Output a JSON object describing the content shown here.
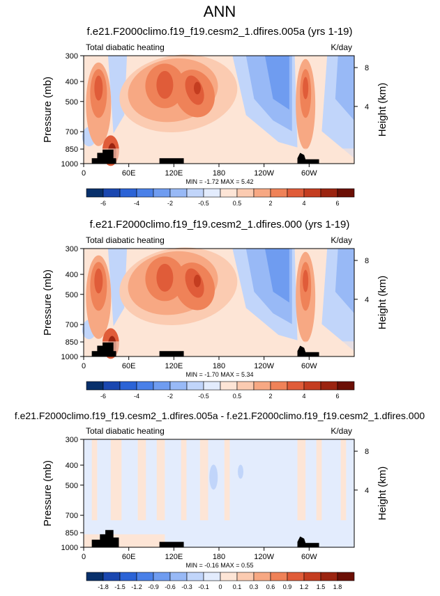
{
  "main_title": "ANN",
  "chart_data": [
    {
      "type": "heatmap",
      "title": "f.e21.F2000climo.f19_f19.cesm2_1.dfires.005a (yrs 1-19)",
      "left_label": "Total diabatic heating",
      "units": "K/day",
      "xlabel": "",
      "ylabel": "Pressure (mb)",
      "y2label": "Height (km)",
      "x_ticks": [
        "0",
        "60E",
        "120E",
        "180",
        "120W",
        "60W"
      ],
      "y_ticks": [
        "300",
        "400",
        "500",
        "700",
        "850",
        "1000"
      ],
      "y2_ticks": [
        "8",
        "4"
      ],
      "stats": "MIN = -1.72   MAX =   5.42",
      "min": -1.72,
      "max": 5.42,
      "colorbar_labels": [
        "-6",
        "-4",
        "-2",
        "-0.5",
        "0.5",
        "2",
        "4",
        "6"
      ],
      "colorbar_levels": 16
    },
    {
      "type": "heatmap",
      "title": "f.e21.F2000climo.f19_f19.cesm2_1.dfires.000 (yrs 1-19)",
      "left_label": "Total diabatic heating",
      "units": "K/day",
      "xlabel": "",
      "ylabel": "Pressure (mb)",
      "y2label": "Height (km)",
      "x_ticks": [
        "0",
        "60E",
        "120E",
        "180",
        "120W",
        "60W"
      ],
      "y_ticks": [
        "300",
        "400",
        "500",
        "700",
        "850",
        "1000"
      ],
      "y2_ticks": [
        "8",
        "4"
      ],
      "stats": "MIN = -1.70   MAX =   5.34",
      "min": -1.7,
      "max": 5.34,
      "colorbar_labels": [
        "-6",
        "-4",
        "-2",
        "-0.5",
        "0.5",
        "2",
        "4",
        "6"
      ],
      "colorbar_levels": 16
    },
    {
      "type": "heatmap",
      "title": "f.e21.F2000climo.f19_f19.cesm2_1.dfires.005a - f.e21.F2000climo.f19_f19.cesm2_1.dfires.000",
      "left_label": "Total diabatic heating",
      "units": "K/day",
      "xlabel": "",
      "ylabel": "Pressure (mb)",
      "y2label": "Height (km)",
      "x_ticks": [
        "0",
        "60E",
        "120E",
        "180",
        "120W",
        "60W"
      ],
      "y_ticks": [
        "300",
        "400",
        "500",
        "700",
        "850",
        "1000"
      ],
      "y2_ticks": [
        "8",
        "4"
      ],
      "stats": "MIN = -0.16   MAX =   0.55",
      "min": -0.16,
      "max": 0.55,
      "colorbar_labels": [
        "-1.8",
        "-1.5",
        "-1.2",
        "-0.9",
        "-0.6",
        "-0.3",
        "-0.1",
        "0",
        "0.1",
        "0.3",
        "0.6",
        "0.9",
        "1.2",
        "1.5",
        "1.8"
      ],
      "colorbar_levels": 16
    }
  ],
  "colors": {
    "palette": [
      "#08306b",
      "#1a47b0",
      "#2b63d6",
      "#4a80e8",
      "#6f9cf0",
      "#98b9f6",
      "#c1d5fa",
      "#e3ecfd",
      "#fde5d6",
      "#fbcbb1",
      "#f7a883",
      "#ef8258",
      "#e05c39",
      "#c43d20",
      "#9b2410",
      "#6b0f05"
    ],
    "neutral": "#ffffff",
    "land": "#000000",
    "weak_pos": "#fde5d6",
    "weak_neg": "#e3ecfd"
  }
}
